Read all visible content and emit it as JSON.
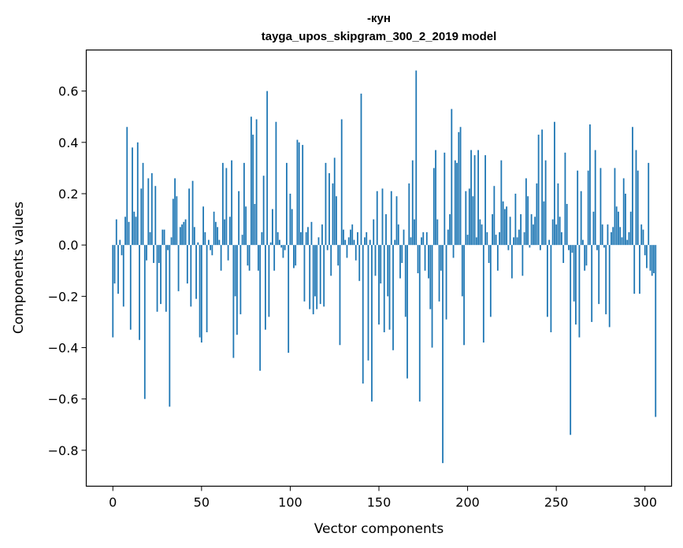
{
  "chart_data": {
    "type": "bar",
    "title": "-кун",
    "subtitle": "tayga_upos_skipgram_300_2_2019 model",
    "xlabel": "Vector components",
    "ylabel": "Components values",
    "xlim": [
      -15,
      315
    ],
    "ylim": [
      -0.94,
      0.76
    ],
    "xticks": [
      0,
      50,
      100,
      150,
      200,
      250,
      300
    ],
    "xtick_labels": [
      "0",
      "50",
      "100",
      "150",
      "200",
      "250",
      "300"
    ],
    "yticks": [
      -0.8,
      -0.6,
      -0.4,
      -0.2,
      0.0,
      0.2,
      0.4,
      0.6
    ],
    "ytick_labels": [
      "−0.8",
      "−0.6",
      "−0.4",
      "−0.2",
      "0.0",
      "0.2",
      "0.4",
      "0.6"
    ],
    "bar_color": "#1f77b4",
    "grid": false,
    "values": [
      -0.36,
      -0.15,
      0.1,
      -0.19,
      0.02,
      -0.04,
      -0.24,
      0.11,
      0.46,
      0.09,
      -0.33,
      0.38,
      0.13,
      0.11,
      0.4,
      -0.37,
      0.22,
      0.32,
      -0.6,
      -0.06,
      0.26,
      0.05,
      0.28,
      -0.07,
      0.23,
      -0.26,
      -0.07,
      -0.23,
      0.06,
      0.06,
      -0.26,
      -0.02,
      -0.63,
      0.03,
      0.18,
      0.26,
      0.19,
      -0.18,
      0.07,
      0.08,
      0.09,
      0.1,
      -0.15,
      0.22,
      -0.24,
      0.25,
      0.07,
      -0.21,
      0.01,
      -0.36,
      -0.38,
      0.15,
      0.05,
      -0.34,
      0.02,
      -0.02,
      -0.04,
      0.13,
      0.09,
      0.07,
      0.02,
      -0.1,
      0.32,
      0.1,
      0.3,
      -0.06,
      0.11,
      0.33,
      -0.44,
      -0.2,
      -0.35,
      0.21,
      -0.27,
      0.04,
      0.32,
      0.15,
      -0.08,
      -0.1,
      0.5,
      0.43,
      0.16,
      0.49,
      -0.1,
      -0.49,
      0.05,
      0.27,
      -0.33,
      0.6,
      -0.28,
      0.01,
      0.14,
      -0.1,
      0.48,
      0.05,
      0.02,
      -0.01,
      -0.05,
      -0.02,
      0.32,
      -0.42,
      0.2,
      0.14,
      -0.09,
      -0.08,
      0.41,
      0.4,
      0.05,
      0.39,
      -0.22,
      0.05,
      0.07,
      -0.25,
      0.09,
      -0.27,
      -0.2,
      -0.25,
      0.03,
      -0.23,
      0.08,
      -0.24,
      0.32,
      -0.02,
      0.28,
      -0.12,
      0.24,
      0.34,
      0.19,
      -0.08,
      -0.39,
      0.49,
      0.06,
      0.02,
      -0.05,
      0.03,
      0.06,
      0.08,
      0.02,
      -0.06,
      0.05,
      -0.14,
      0.59,
      -0.54,
      0.03,
      0.05,
      -0.45,
      0.02,
      -0.61,
      0.1,
      -0.12,
      0.21,
      -0.31,
      -0.15,
      0.22,
      -0.34,
      0.12,
      -0.2,
      -0.33,
      0.21,
      -0.41,
      0.02,
      0.19,
      0.08,
      -0.13,
      -0.07,
      0.06,
      -0.28,
      -0.52,
      0.24,
      0.03,
      0.33,
      0.1,
      0.68,
      -0.11,
      -0.61,
      0.03,
      0.05,
      -0.1,
      0.05,
      -0.13,
      -0.25,
      -0.4,
      0.3,
      0.37,
      0.1,
      -0.22,
      -0.1,
      -0.85,
      0.36,
      -0.29,
      0.06,
      0.12,
      0.53,
      -0.05,
      0.33,
      0.32,
      0.44,
      0.46,
      -0.2,
      -0.39,
      0.21,
      0.04,
      0.22,
      0.37,
      0.19,
      0.35,
      0.03,
      0.37,
      0.1,
      0.08,
      -0.38,
      0.35,
      0.05,
      -0.07,
      -0.28,
      0.12,
      0.23,
      0.04,
      -0.1,
      0.05,
      0.33,
      0.17,
      0.14,
      0.15,
      -0.02,
      0.11,
      -0.13,
      0.03,
      0.2,
      0.03,
      0.06,
      0.12,
      -0.12,
      0.05,
      0.26,
      0.19,
      -0.01,
      0.12,
      0.08,
      0.11,
      0.24,
      0.43,
      -0.02,
      0.45,
      0.17,
      0.33,
      -0.28,
      0.02,
      -0.34,
      0.1,
      0.48,
      0.08,
      0.24,
      0.11,
      0.05,
      -0.07,
      0.36,
      0.16,
      -0.02,
      -0.74,
      -0.03,
      -0.22,
      -0.31,
      0.29,
      -0.36,
      0.21,
      0.02,
      -0.1,
      -0.08,
      0.29,
      0.47,
      -0.3,
      0.13,
      0.37,
      -0.02,
      -0.23,
      0.3,
      0.08,
      -0.01,
      -0.27,
      0.08,
      -0.32,
      0.05,
      0.07,
      0.3,
      0.15,
      0.13,
      0.07,
      0.03,
      0.26,
      0.2,
      0.02,
      0.05,
      0.13,
      0.46,
      -0.19,
      0.37,
      0.29,
      -0.19,
      0.08,
      0.06,
      -0.04,
      -0.09,
      0.32,
      -0.1,
      -0.12,
      -0.11,
      -0.67
    ]
  }
}
